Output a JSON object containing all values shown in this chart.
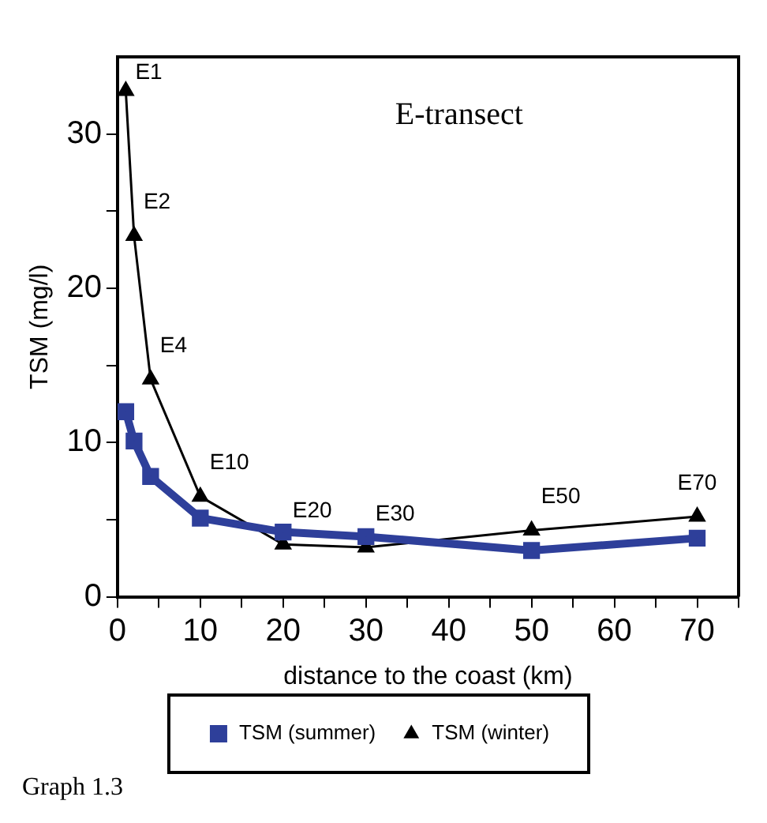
{
  "chart_data": {
    "type": "line",
    "title": "E-transect",
    "xlabel": "distance to the coast (km)",
    "ylabel": "TSM (mg/l)",
    "x": [
      1,
      2,
      4,
      10,
      20,
      30,
      50,
      70
    ],
    "series": [
      {
        "name": "TSM (summer)",
        "color": "#2e3f9a",
        "values": [
          12,
          10.1,
          7.8,
          5.1,
          4.2,
          3.9,
          3.0,
          3.8
        ],
        "marker": "square"
      },
      {
        "name": "TSM (winter)",
        "color": "#000000",
        "values": [
          32.8,
          23.4,
          14.1,
          6.5,
          3.4,
          3.2,
          4.3,
          5.2
        ],
        "marker": "triangle"
      }
    ],
    "xlim": [
      0,
      75
    ],
    "xticks": [
      0,
      {
        "value": 5,
        "label": null
      },
      10,
      {
        "value": 15,
        "label": null
      },
      20,
      {
        "value": 25,
        "label": null
      },
      30,
      {
        "value": 35,
        "label": null
      },
      40,
      {
        "value": 45,
        "label": null
      },
      50,
      {
        "value": 55,
        "label": null
      },
      60,
      {
        "value": 65,
        "label": null
      },
      70,
      {
        "value": 75,
        "label": null
      }
    ],
    "ylim": [
      0,
      35
    ],
    "yticks": [
      0,
      {
        "value": 5,
        "label": null
      },
      10,
      {
        "value": 15,
        "label": null
      },
      20,
      {
        "value": 25,
        "label": null
      },
      30
    ],
    "grid": false,
    "legend": "bottom",
    "line_style": "solid",
    "annotations": [
      {
        "text": "E1",
        "x": 1,
        "y": 32.8
      },
      {
        "text": "E2",
        "x": 2,
        "y": 23.4
      },
      {
        "text": "E4",
        "x": 4,
        "y": 14.1
      },
      {
        "text": "E10",
        "x": 10,
        "y": 6.5
      },
      {
        "text": "E20",
        "x": 20,
        "y": 3.4
      },
      {
        "text": "E30",
        "x": 30,
        "y": 3.2
      },
      {
        "text": "E50",
        "x": 50,
        "y": 4.3
      },
      {
        "text": "E70",
        "x": 70,
        "y": 5.2
      },
      "Graph 1.3"
    ]
  }
}
